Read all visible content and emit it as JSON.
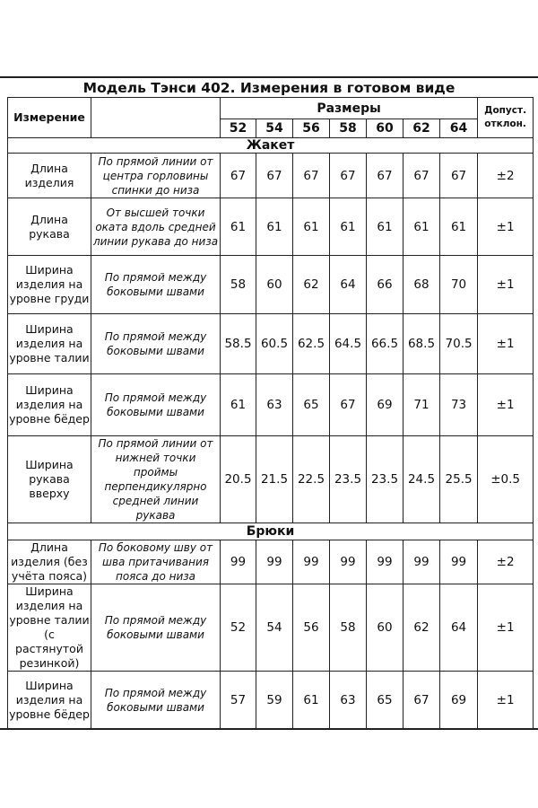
{
  "title": "Модель Тэнси 402. Измерения в готовом виде",
  "header": {
    "measurement": "Измерение",
    "sizes_label": "Размеры",
    "sizes": [
      "52",
      "54",
      "56",
      "58",
      "60",
      "62",
      "64"
    ],
    "tolerance": "Допуст. отклон."
  },
  "sections": [
    {
      "name": "Жакет",
      "rows": [
        {
          "name": "Длина изделия",
          "desc": "По прямой линии от центра горловины спинки до низа",
          "values": [
            "67",
            "67",
            "67",
            "67",
            "67",
            "67",
            "67"
          ],
          "tol": "±2"
        },
        {
          "name": "Длина рукава",
          "desc": "От высшей точки оката вдоль средней линии рукава до низа",
          "values": [
            "61",
            "61",
            "61",
            "61",
            "61",
            "61",
            "61"
          ],
          "tol": "±1"
        },
        {
          "name": "Ширина изделия на уровне груди",
          "desc": "По прямой между боковыми швами",
          "values": [
            "58",
            "60",
            "62",
            "64",
            "66",
            "68",
            "70"
          ],
          "tol": "±1"
        },
        {
          "name": "Ширина изделия на уровне талии",
          "desc": "По прямой между боковыми швами",
          "values": [
            "58.5",
            "60.5",
            "62.5",
            "64.5",
            "66.5",
            "68.5",
            "70.5"
          ],
          "tol": "±1"
        },
        {
          "name": "Ширина изделия на уровне бёдер",
          "desc": "По прямой между боковыми швами",
          "values": [
            "61",
            "63",
            "65",
            "67",
            "69",
            "71",
            "73"
          ],
          "tol": "±1"
        },
        {
          "name": "Ширина рукава вверху",
          "desc": "По прямой линии от нижней точки проймы перпендикулярно средней линии рукава",
          "values": [
            "20.5",
            "21.5",
            "22.5",
            "23.5",
            "23.5",
            "24.5",
            "25.5"
          ],
          "tol": "±0.5"
        }
      ]
    },
    {
      "name": "Брюки",
      "rows": [
        {
          "name": "Длина изделия (без учёта пояса)",
          "desc": "По боковому шву от шва притачивания пояса до низа",
          "values": [
            "99",
            "99",
            "99",
            "99",
            "99",
            "99",
            "99"
          ],
          "tol": "±2"
        },
        {
          "name": "Ширина изделия на уровне талии (с растянутой резинкой)",
          "desc": "По прямой между боковыми швами",
          "values": [
            "52",
            "54",
            "56",
            "58",
            "60",
            "62",
            "64"
          ],
          "tol": "±1"
        },
        {
          "name": "Ширина изделия на уровне бёдер",
          "desc": "По прямой между боковыми швами",
          "values": [
            "57",
            "59",
            "61",
            "63",
            "65",
            "67",
            "69"
          ],
          "tol": "±1"
        }
      ]
    }
  ]
}
